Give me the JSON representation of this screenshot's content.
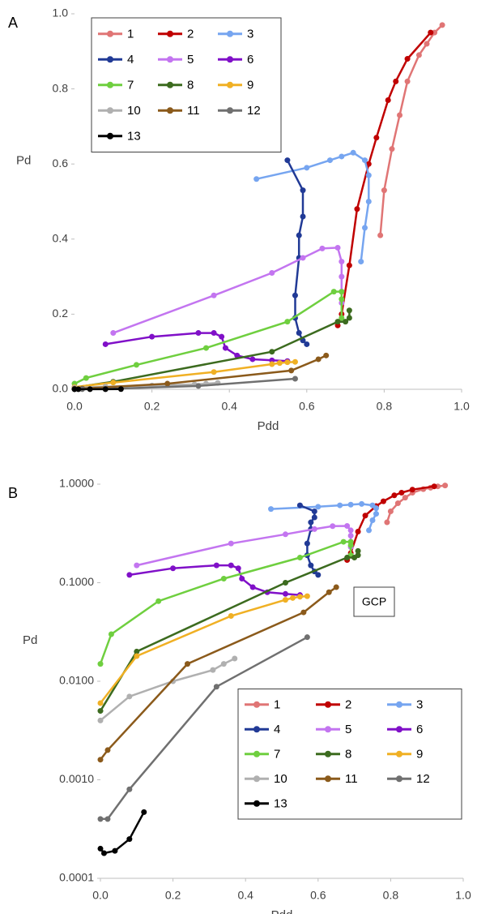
{
  "chart_data": [
    {
      "type": "line",
      "panel": "A",
      "xlabel": "Pdd",
      "ylabel": "Pd",
      "legend": "upper left",
      "grid": false,
      "xlim": [
        0,
        1
      ],
      "ylim": [
        0,
        1
      ],
      "xticks": [
        {
          "value": 0,
          "label": "0.0"
        },
        {
          "value": 0.2,
          "label": "0.2"
        },
        {
          "value": 0.4,
          "label": "0.4"
        },
        {
          "value": 0.6,
          "label": "0.6"
        },
        {
          "value": 0.8,
          "label": "0.8"
        },
        {
          "value": 1,
          "label": "1.0"
        }
      ],
      "yticks": [
        {
          "value": 0,
          "label": "0.0"
        },
        {
          "value": 0.2,
          "label": "0.2"
        },
        {
          "value": 0.4,
          "label": "0.4"
        },
        {
          "value": 0.6,
          "label": "0.6"
        },
        {
          "value": 0.8,
          "label": "0.8"
        },
        {
          "value": 1,
          "label": "1.0"
        }
      ],
      "series": [
        {
          "name": "1",
          "color": "#e07575",
          "x": [
            0.79,
            0.8,
            0.82,
            0.84,
            0.86,
            0.89,
            0.91,
            0.93,
            0.95
          ],
          "values": [
            0.41,
            0.53,
            0.64,
            0.73,
            0.82,
            0.89,
            0.92,
            0.95,
            0.97
          ]
        },
        {
          "name": "2",
          "color": "#c00000",
          "x": [
            0.68,
            0.69,
            0.71,
            0.73,
            0.76,
            0.78,
            0.81,
            0.83,
            0.86,
            0.92
          ],
          "values": [
            0.17,
            0.2,
            0.33,
            0.48,
            0.6,
            0.67,
            0.77,
            0.82,
            0.88,
            0.95
          ]
        },
        {
          "name": "3",
          "color": "#76a5f0",
          "x": [
            0.47,
            0.6,
            0.66,
            0.69,
            0.72,
            0.75,
            0.76,
            0.76,
            0.75,
            0.74
          ],
          "values": [
            0.56,
            0.59,
            0.61,
            0.62,
            0.63,
            0.61,
            0.57,
            0.5,
            0.43,
            0.34
          ]
        },
        {
          "name": "4",
          "color": "#213a96",
          "x": [
            0.55,
            0.59,
            0.59,
            0.58,
            0.58,
            0.57,
            0.57,
            0.58,
            0.59,
            0.6
          ],
          "values": [
            0.61,
            0.53,
            0.46,
            0.41,
            0.35,
            0.25,
            0.19,
            0.15,
            0.13,
            0.12
          ]
        },
        {
          "name": "5",
          "color": "#c375f0",
          "x": [
            0.1,
            0.36,
            0.51,
            0.59,
            0.64,
            0.68,
            0.69,
            0.69,
            0.69,
            0.69
          ],
          "values": [
            0.15,
            0.25,
            0.31,
            0.35,
            0.375,
            0.377,
            0.34,
            0.3,
            0.26,
            0.23
          ]
        },
        {
          "name": "6",
          "color": "#8010c8",
          "x": [
            0.08,
            0.2,
            0.32,
            0.36,
            0.38,
            0.39,
            0.42,
            0.46,
            0.51,
            0.55
          ],
          "values": [
            0.12,
            0.14,
            0.15,
            0.15,
            0.14,
            0.11,
            0.09,
            0.08,
            0.077,
            0.075
          ]
        },
        {
          "name": "7",
          "color": "#6fcf3f",
          "x": [
            0,
            0.03,
            0.16,
            0.34,
            0.55,
            0.67,
            0.69,
            0.69,
            0.69
          ],
          "values": [
            0.015,
            0.03,
            0.065,
            0.11,
            0.18,
            0.26,
            0.26,
            0.24,
            0.19
          ]
        },
        {
          "name": "8",
          "color": "#3c6b1f",
          "x": [
            0,
            0.1,
            0.51,
            0.68,
            0.7,
            0.71,
            0.71
          ],
          "values": [
            0.005,
            0.02,
            0.1,
            0.18,
            0.18,
            0.19,
            0.21
          ]
        },
        {
          "name": "9",
          "color": "#f0b024",
          "x": [
            0,
            0.1,
            0.36,
            0.51,
            0.53,
            0.55,
            0.57
          ],
          "values": [
            0.006,
            0.018,
            0.046,
            0.067,
            0.07,
            0.072,
            0.073
          ]
        },
        {
          "name": "10",
          "color": "#b0b0b0",
          "x": [
            0,
            0.08,
            0.2,
            0.31,
            0.34,
            0.37
          ],
          "values": [
            0.004,
            0.007,
            0.01,
            0.013,
            0.015,
            0.017
          ]
        },
        {
          "name": "11",
          "color": "#8b5a1b",
          "x": [
            0,
            0.02,
            0.24,
            0.56,
            0.63,
            0.65
          ],
          "values": [
            0.0016,
            0.002,
            0.015,
            0.05,
            0.08,
            0.09
          ]
        },
        {
          "name": "12",
          "color": "#707070",
          "x": [
            0,
            0.02,
            0.08,
            0.32,
            0.57
          ],
          "values": [
            0.0004,
            0.0004,
            0.0008,
            0.0088,
            0.028
          ]
        },
        {
          "name": "13",
          "color": "#000000",
          "x": [
            0,
            0.01,
            0.04,
            0.08,
            0.12
          ],
          "values": [
            0.0002,
            0.00018,
            0.00019,
            0.00025,
            0.00047
          ]
        }
      ]
    },
    {
      "type": "line",
      "panel": "B",
      "xlabel": "Pdd",
      "ylabel": "Pd",
      "legend": "lower right",
      "grid": false,
      "log_y": true,
      "annotation": "GCP",
      "xlim": [
        0,
        1
      ],
      "ylim": [
        0.0001,
        1
      ],
      "xticks": [
        {
          "value": 0,
          "label": "0.0"
        },
        {
          "value": 0.2,
          "label": "0.2"
        },
        {
          "value": 0.4,
          "label": "0.4"
        },
        {
          "value": 0.6,
          "label": "0.6"
        },
        {
          "value": 0.8,
          "label": "0.8"
        },
        {
          "value": 1,
          "label": "1.0"
        }
      ],
      "yticks": [
        {
          "value": 0.0001,
          "label": "0.0001"
        },
        {
          "value": 0.001,
          "label": "0.0010"
        },
        {
          "value": 0.01,
          "label": "0.0100"
        },
        {
          "value": 0.1,
          "label": "0.1000"
        },
        {
          "value": 1,
          "label": "1.0000"
        }
      ],
      "series": [
        {
          "name": "1",
          "color": "#e07575",
          "x": [
            0.79,
            0.8,
            0.82,
            0.84,
            0.86,
            0.89,
            0.91,
            0.93,
            0.95
          ],
          "values": [
            0.41,
            0.53,
            0.64,
            0.73,
            0.82,
            0.89,
            0.92,
            0.95,
            0.97
          ]
        },
        {
          "name": "2",
          "color": "#c00000",
          "x": [
            0.68,
            0.69,
            0.71,
            0.73,
            0.76,
            0.78,
            0.81,
            0.83,
            0.86,
            0.92
          ],
          "values": [
            0.17,
            0.2,
            0.33,
            0.48,
            0.6,
            0.67,
            0.77,
            0.82,
            0.88,
            0.95
          ]
        },
        {
          "name": "3",
          "color": "#76a5f0",
          "x": [
            0.47,
            0.6,
            0.66,
            0.69,
            0.72,
            0.75,
            0.76,
            0.76,
            0.75,
            0.74
          ],
          "values": [
            0.56,
            0.59,
            0.61,
            0.62,
            0.63,
            0.61,
            0.57,
            0.5,
            0.43,
            0.34
          ]
        },
        {
          "name": "4",
          "color": "#213a96",
          "x": [
            0.55,
            0.59,
            0.59,
            0.58,
            0.58,
            0.57,
            0.57,
            0.58,
            0.59,
            0.6
          ],
          "values": [
            0.61,
            0.53,
            0.46,
            0.41,
            0.35,
            0.25,
            0.19,
            0.15,
            0.13,
            0.12
          ]
        },
        {
          "name": "5",
          "color": "#c375f0",
          "x": [
            0.1,
            0.36,
            0.51,
            0.59,
            0.64,
            0.68,
            0.69,
            0.69,
            0.69,
            0.69
          ],
          "values": [
            0.15,
            0.25,
            0.31,
            0.35,
            0.375,
            0.377,
            0.34,
            0.3,
            0.26,
            0.23
          ]
        },
        {
          "name": "6",
          "color": "#8010c8",
          "x": [
            0.08,
            0.2,
            0.32,
            0.36,
            0.38,
            0.39,
            0.42,
            0.46,
            0.51,
            0.55
          ],
          "values": [
            0.12,
            0.14,
            0.15,
            0.15,
            0.14,
            0.11,
            0.09,
            0.08,
            0.077,
            0.075
          ]
        },
        {
          "name": "7",
          "color": "#6fcf3f",
          "x": [
            0,
            0.03,
            0.16,
            0.34,
            0.55,
            0.67,
            0.69,
            0.69,
            0.69
          ],
          "values": [
            0.015,
            0.03,
            0.065,
            0.11,
            0.18,
            0.26,
            0.26,
            0.24,
            0.19
          ]
        },
        {
          "name": "8",
          "color": "#3c6b1f",
          "x": [
            0,
            0.1,
            0.51,
            0.68,
            0.7,
            0.71,
            0.71
          ],
          "values": [
            0.005,
            0.02,
            0.1,
            0.18,
            0.18,
            0.19,
            0.21
          ]
        },
        {
          "name": "9",
          "color": "#f0b024",
          "x": [
            0,
            0.1,
            0.36,
            0.51,
            0.53,
            0.55,
            0.57
          ],
          "values": [
            0.006,
            0.018,
            0.046,
            0.067,
            0.07,
            0.072,
            0.073
          ]
        },
        {
          "name": "10",
          "color": "#b0b0b0",
          "x": [
            0,
            0.08,
            0.2,
            0.31,
            0.34,
            0.37
          ],
          "values": [
            0.004,
            0.007,
            0.01,
            0.013,
            0.015,
            0.017
          ]
        },
        {
          "name": "11",
          "color": "#8b5a1b",
          "x": [
            0,
            0.02,
            0.24,
            0.56,
            0.63,
            0.65
          ],
          "values": [
            0.0016,
            0.002,
            0.015,
            0.05,
            0.08,
            0.09
          ]
        },
        {
          "name": "12",
          "color": "#707070",
          "x": [
            0,
            0.02,
            0.08,
            0.32,
            0.57
          ],
          "values": [
            0.0004,
            0.0004,
            0.0008,
            0.0088,
            0.028
          ]
        },
        {
          "name": "13",
          "color": "#000000",
          "x": [
            0,
            0.01,
            0.04,
            0.08,
            0.12
          ],
          "values": [
            0.0002,
            0.00018,
            0.00019,
            0.00025,
            0.00047
          ]
        }
      ]
    }
  ]
}
